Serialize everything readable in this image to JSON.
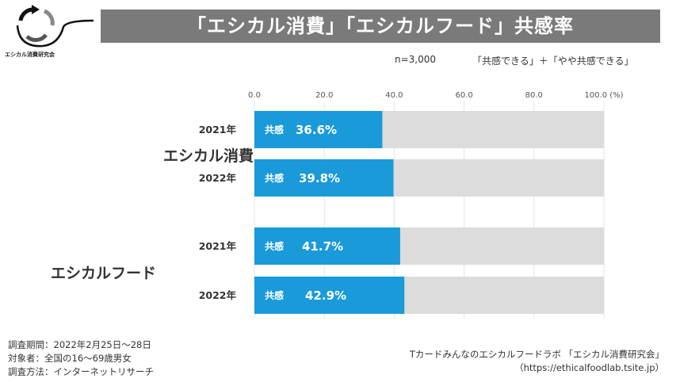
{
  "title": "「エシカル消費」「エシカルフード」共感率",
  "logo": {
    "text": "エシカル消費研究会"
  },
  "sample": "n=3,000",
  "legend_note": "「共感できる」＋「やや共感できる」",
  "colors": {
    "bar": "#1a9ad9",
    "remainder": "#dcdcdc",
    "title_bg": "#7a7a7a"
  },
  "chart_data": {
    "type": "bar",
    "orientation": "horizontal",
    "stacked_to": 100,
    "xlim": [
      0,
      100
    ],
    "xunit": "(%)",
    "ticks": [
      "0.0",
      "20.0",
      "40.0",
      "60.0",
      "80.0",
      "100.0"
    ],
    "grid": true,
    "groups": [
      "エシカル消費",
      "エシカルフード"
    ],
    "bar_prefix": "共感",
    "bars": [
      {
        "group": "エシカル消費",
        "year": "2021年",
        "value": 36.6,
        "label": "36.6%"
      },
      {
        "group": "エシカル消費",
        "year": "2022年",
        "value": 39.8,
        "label": "39.8%"
      },
      {
        "group": "エシカルフード",
        "year": "2021年",
        "value": 41.7,
        "label": "41.7%"
      },
      {
        "group": "エシカルフード",
        "year": "2022年",
        "value": 42.9,
        "label": "42.9%"
      }
    ]
  },
  "footer": {
    "left": [
      "調査期間：2022年2月25日～28日",
      "対象者：全国の16～69歳男女",
      "調査方法：インターネットリサーチ"
    ],
    "right": [
      "Tカードみんなのエシカルフードラボ 「エシカル消費研究会」",
      "（https://ethicalfoodlab.tsite.jp）"
    ]
  }
}
